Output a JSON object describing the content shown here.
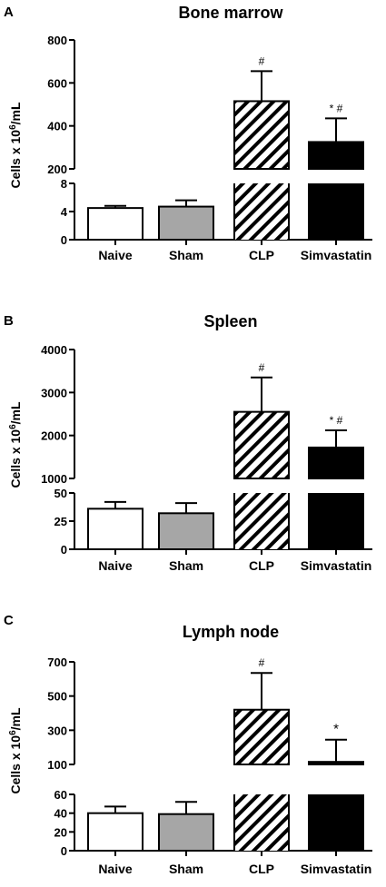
{
  "ylabel_main": "Cells x 10",
  "ylabel_sup": "6",
  "ylabel_unit": "/mL",
  "chart_data": [
    {
      "panel": "A",
      "type": "bar",
      "title": "Bone marrow",
      "categories": [
        "Naive",
        "Sham",
        "CLP",
        "Simvastatin"
      ],
      "values": [
        4.5,
        4.7,
        515,
        325
      ],
      "errors": [
        0.3,
        0.9,
        140,
        110
      ],
      "annotations": [
        "",
        "",
        "#",
        "* #"
      ],
      "bar_styles": [
        "white",
        "gray",
        "hatched",
        "black"
      ],
      "broken_axis": {
        "lower_ylim": [
          0,
          8
        ],
        "lower_ticks": [
          0,
          4,
          8
        ],
        "upper_ylim": [
          200,
          800
        ],
        "upper_ticks": [
          200,
          400,
          600,
          800
        ]
      },
      "ylabel": "Cells x 10^6/mL"
    },
    {
      "panel": "B",
      "type": "bar",
      "title": "Spleen",
      "categories": [
        "Naive",
        "Sham",
        "CLP",
        "Simvastatin"
      ],
      "values": [
        36,
        32,
        2550,
        1720
      ],
      "errors": [
        6,
        9,
        800,
        400
      ],
      "annotations": [
        "",
        "",
        "#",
        "* #"
      ],
      "bar_styles": [
        "white",
        "gray",
        "hatched",
        "black"
      ],
      "broken_axis": {
        "lower_ylim": [
          0,
          50
        ],
        "lower_ticks": [
          0,
          25,
          50
        ],
        "upper_ylim": [
          1000,
          4000
        ],
        "upper_ticks": [
          1000,
          2000,
          3000,
          4000
        ]
      },
      "ylabel": "Cells x 10^6/mL"
    },
    {
      "panel": "C",
      "type": "bar",
      "title": "Lymph node",
      "categories": [
        "Naive",
        "Sham",
        "CLP",
        "Simvastatin"
      ],
      "values": [
        40,
        39,
        420,
        115
      ],
      "errors": [
        7,
        13,
        215,
        130
      ],
      "annotations": [
        "",
        "",
        "#",
        "*"
      ],
      "bar_styles": [
        "white",
        "gray",
        "hatched",
        "black"
      ],
      "broken_axis": {
        "lower_ylim": [
          0,
          60
        ],
        "lower_ticks": [
          0,
          20,
          40,
          60
        ],
        "upper_ylim": [
          100,
          700
        ],
        "upper_ticks": [
          100,
          300,
          500,
          700
        ]
      },
      "ylabel": "Cells x 10^6/mL"
    }
  ]
}
